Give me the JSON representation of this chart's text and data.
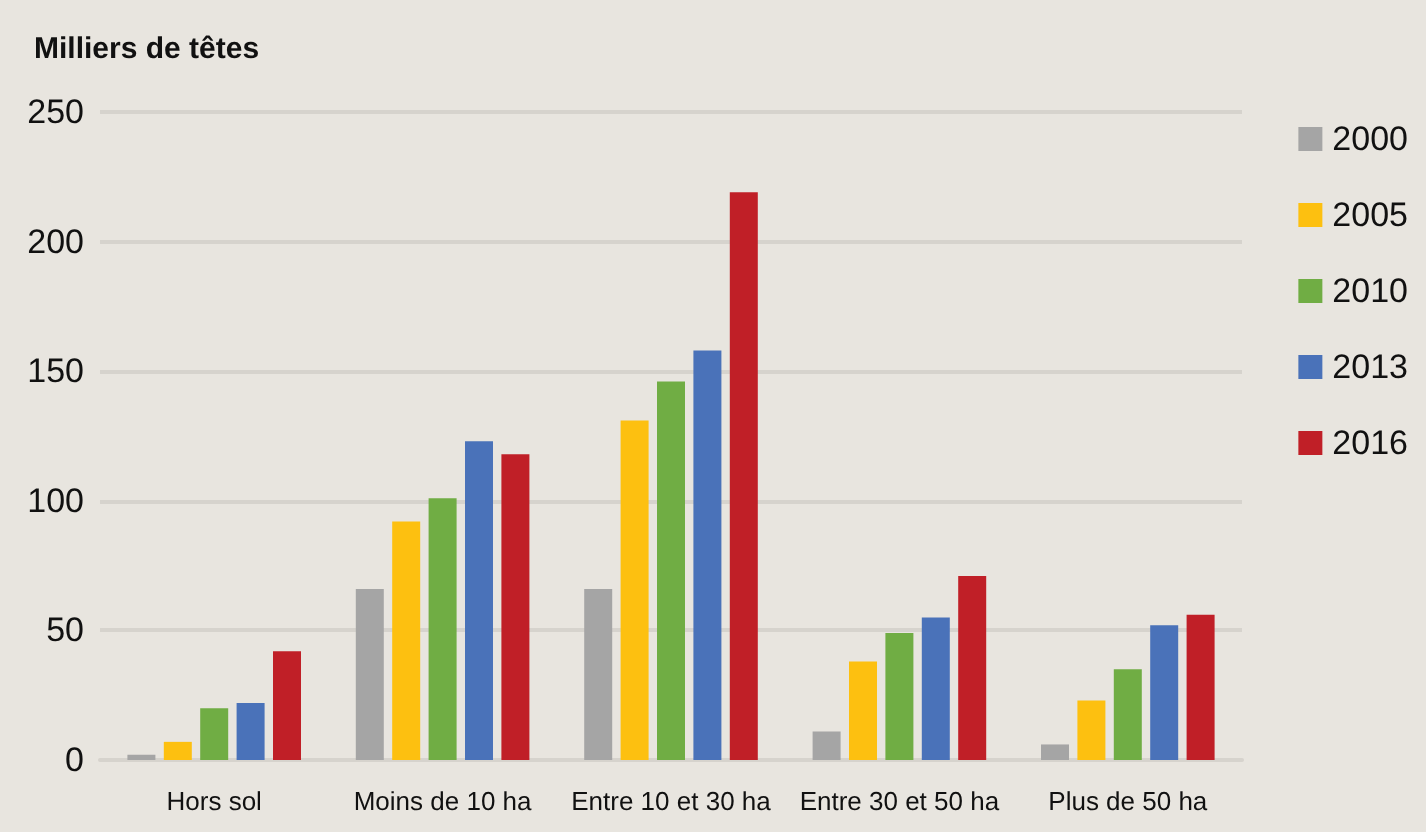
{
  "chart_data": {
    "type": "bar",
    "ylabel": "Milliers de têtes",
    "categories": [
      "Hors sol",
      "Moins de 10 ha",
      "Entre 10 et 30 ha",
      "Entre 30 et 50 ha",
      "Plus de 50 ha"
    ],
    "series": [
      {
        "name": "2000",
        "color": "#a5a5a5",
        "values": [
          2,
          66,
          66,
          11,
          6
        ]
      },
      {
        "name": "2005",
        "color": "#fdc010",
        "values": [
          7,
          92,
          131,
          38,
          23
        ]
      },
      {
        "name": "2010",
        "color": "#70ad44",
        "values": [
          20,
          101,
          146,
          49,
          35
        ]
      },
      {
        "name": "2013",
        "color": "#4a72b9",
        "values": [
          22,
          123,
          158,
          55,
          52
        ]
      },
      {
        "name": "2016",
        "color": "#c01f27",
        "values": [
          42,
          118,
          219,
          71,
          56
        ]
      }
    ],
    "ylim": [
      0,
      250
    ],
    "yticks": [
      0,
      50,
      100,
      150,
      200,
      250
    ],
    "grid": "y",
    "legend": "right"
  }
}
